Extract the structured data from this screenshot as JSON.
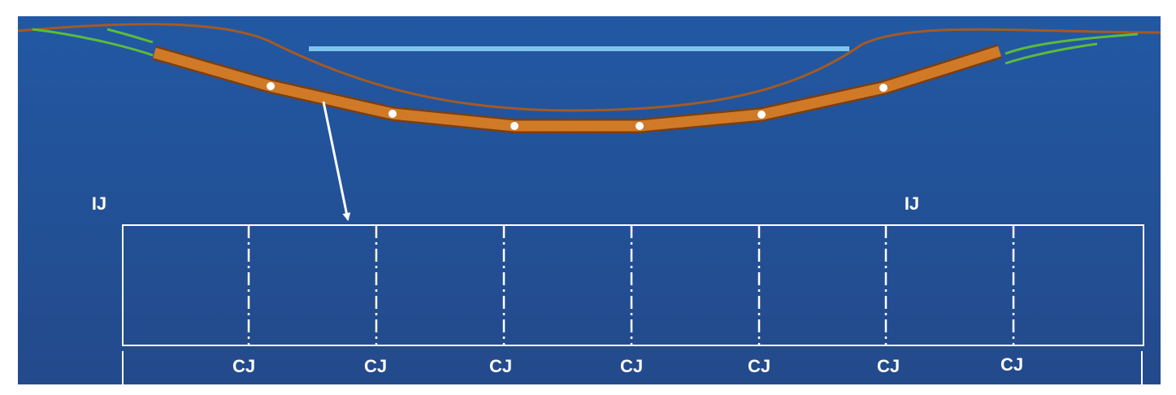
{
  "ij_labels": [
    "IJ",
    "IJ"
  ],
  "cj_labels": [
    "CJ",
    "CJ",
    "CJ",
    "CJ",
    "CJ",
    "CJ",
    "CJ"
  ]
}
